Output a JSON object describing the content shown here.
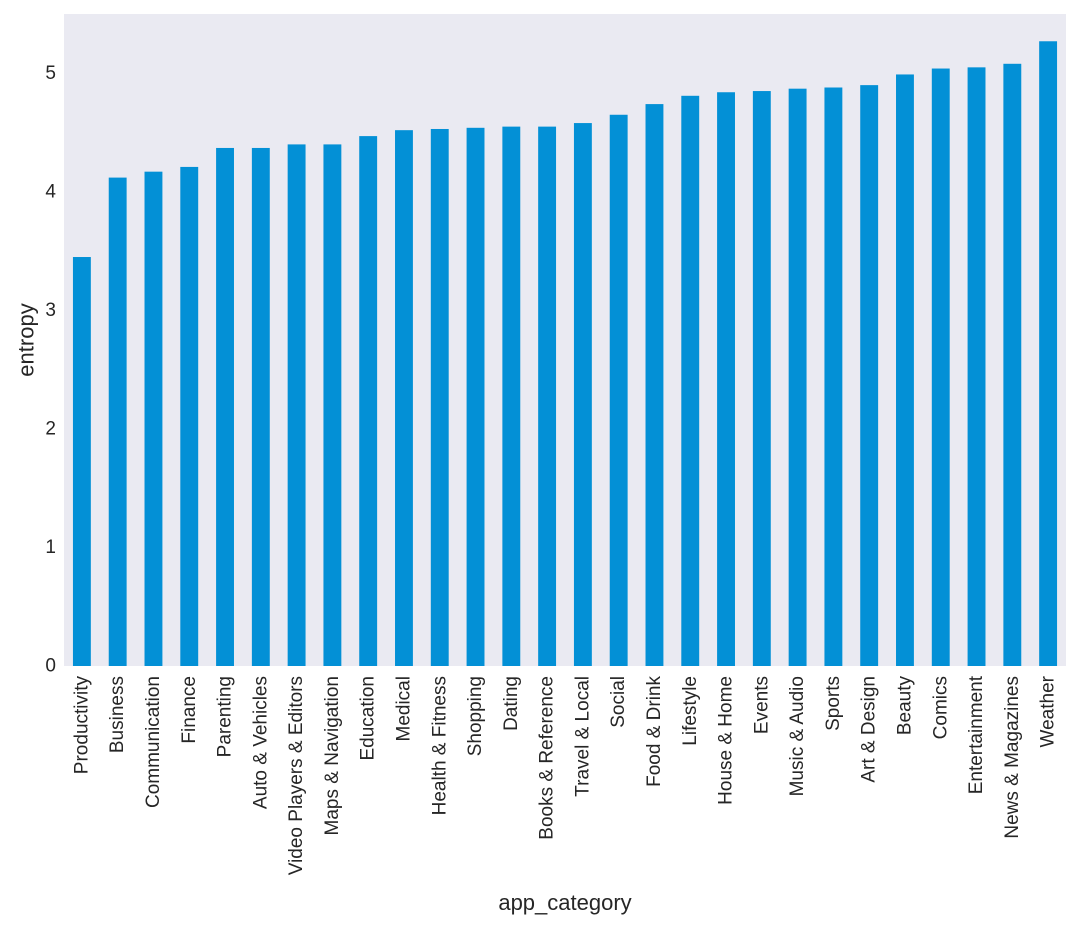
{
  "chart_data": {
    "type": "bar",
    "xlabel": "app_category",
    "ylabel": "entropy",
    "ylim": [
      0,
      5.5
    ],
    "yticks": [
      0,
      1,
      2,
      3,
      4,
      5
    ],
    "grid": false,
    "bar_color": "#0390d6",
    "plot_background": "#eaeaf2",
    "categories": [
      "Productivity",
      "Business",
      "Communication",
      "Finance",
      "Parenting",
      "Auto & Vehicles",
      "Video Players & Editors",
      "Maps & Navigation",
      "Education",
      "Medical",
      "Health & Fitness",
      "Shopping",
      "Dating",
      "Books & Reference",
      "Travel & Local",
      "Social",
      "Food & Drink",
      "Lifestyle",
      "House & Home",
      "Events",
      "Music & Audio",
      "Sports",
      "Art & Design",
      "Beauty",
      "Comics",
      "Entertainment",
      "News & Magazines",
      "Weather"
    ],
    "values": [
      3.45,
      4.12,
      4.17,
      4.21,
      4.37,
      4.37,
      4.4,
      4.4,
      4.47,
      4.52,
      4.53,
      4.54,
      4.55,
      4.55,
      4.58,
      4.65,
      4.74,
      4.81,
      4.84,
      4.85,
      4.87,
      4.88,
      4.9,
      4.99,
      5.04,
      5.05,
      5.08,
      5.27
    ]
  }
}
